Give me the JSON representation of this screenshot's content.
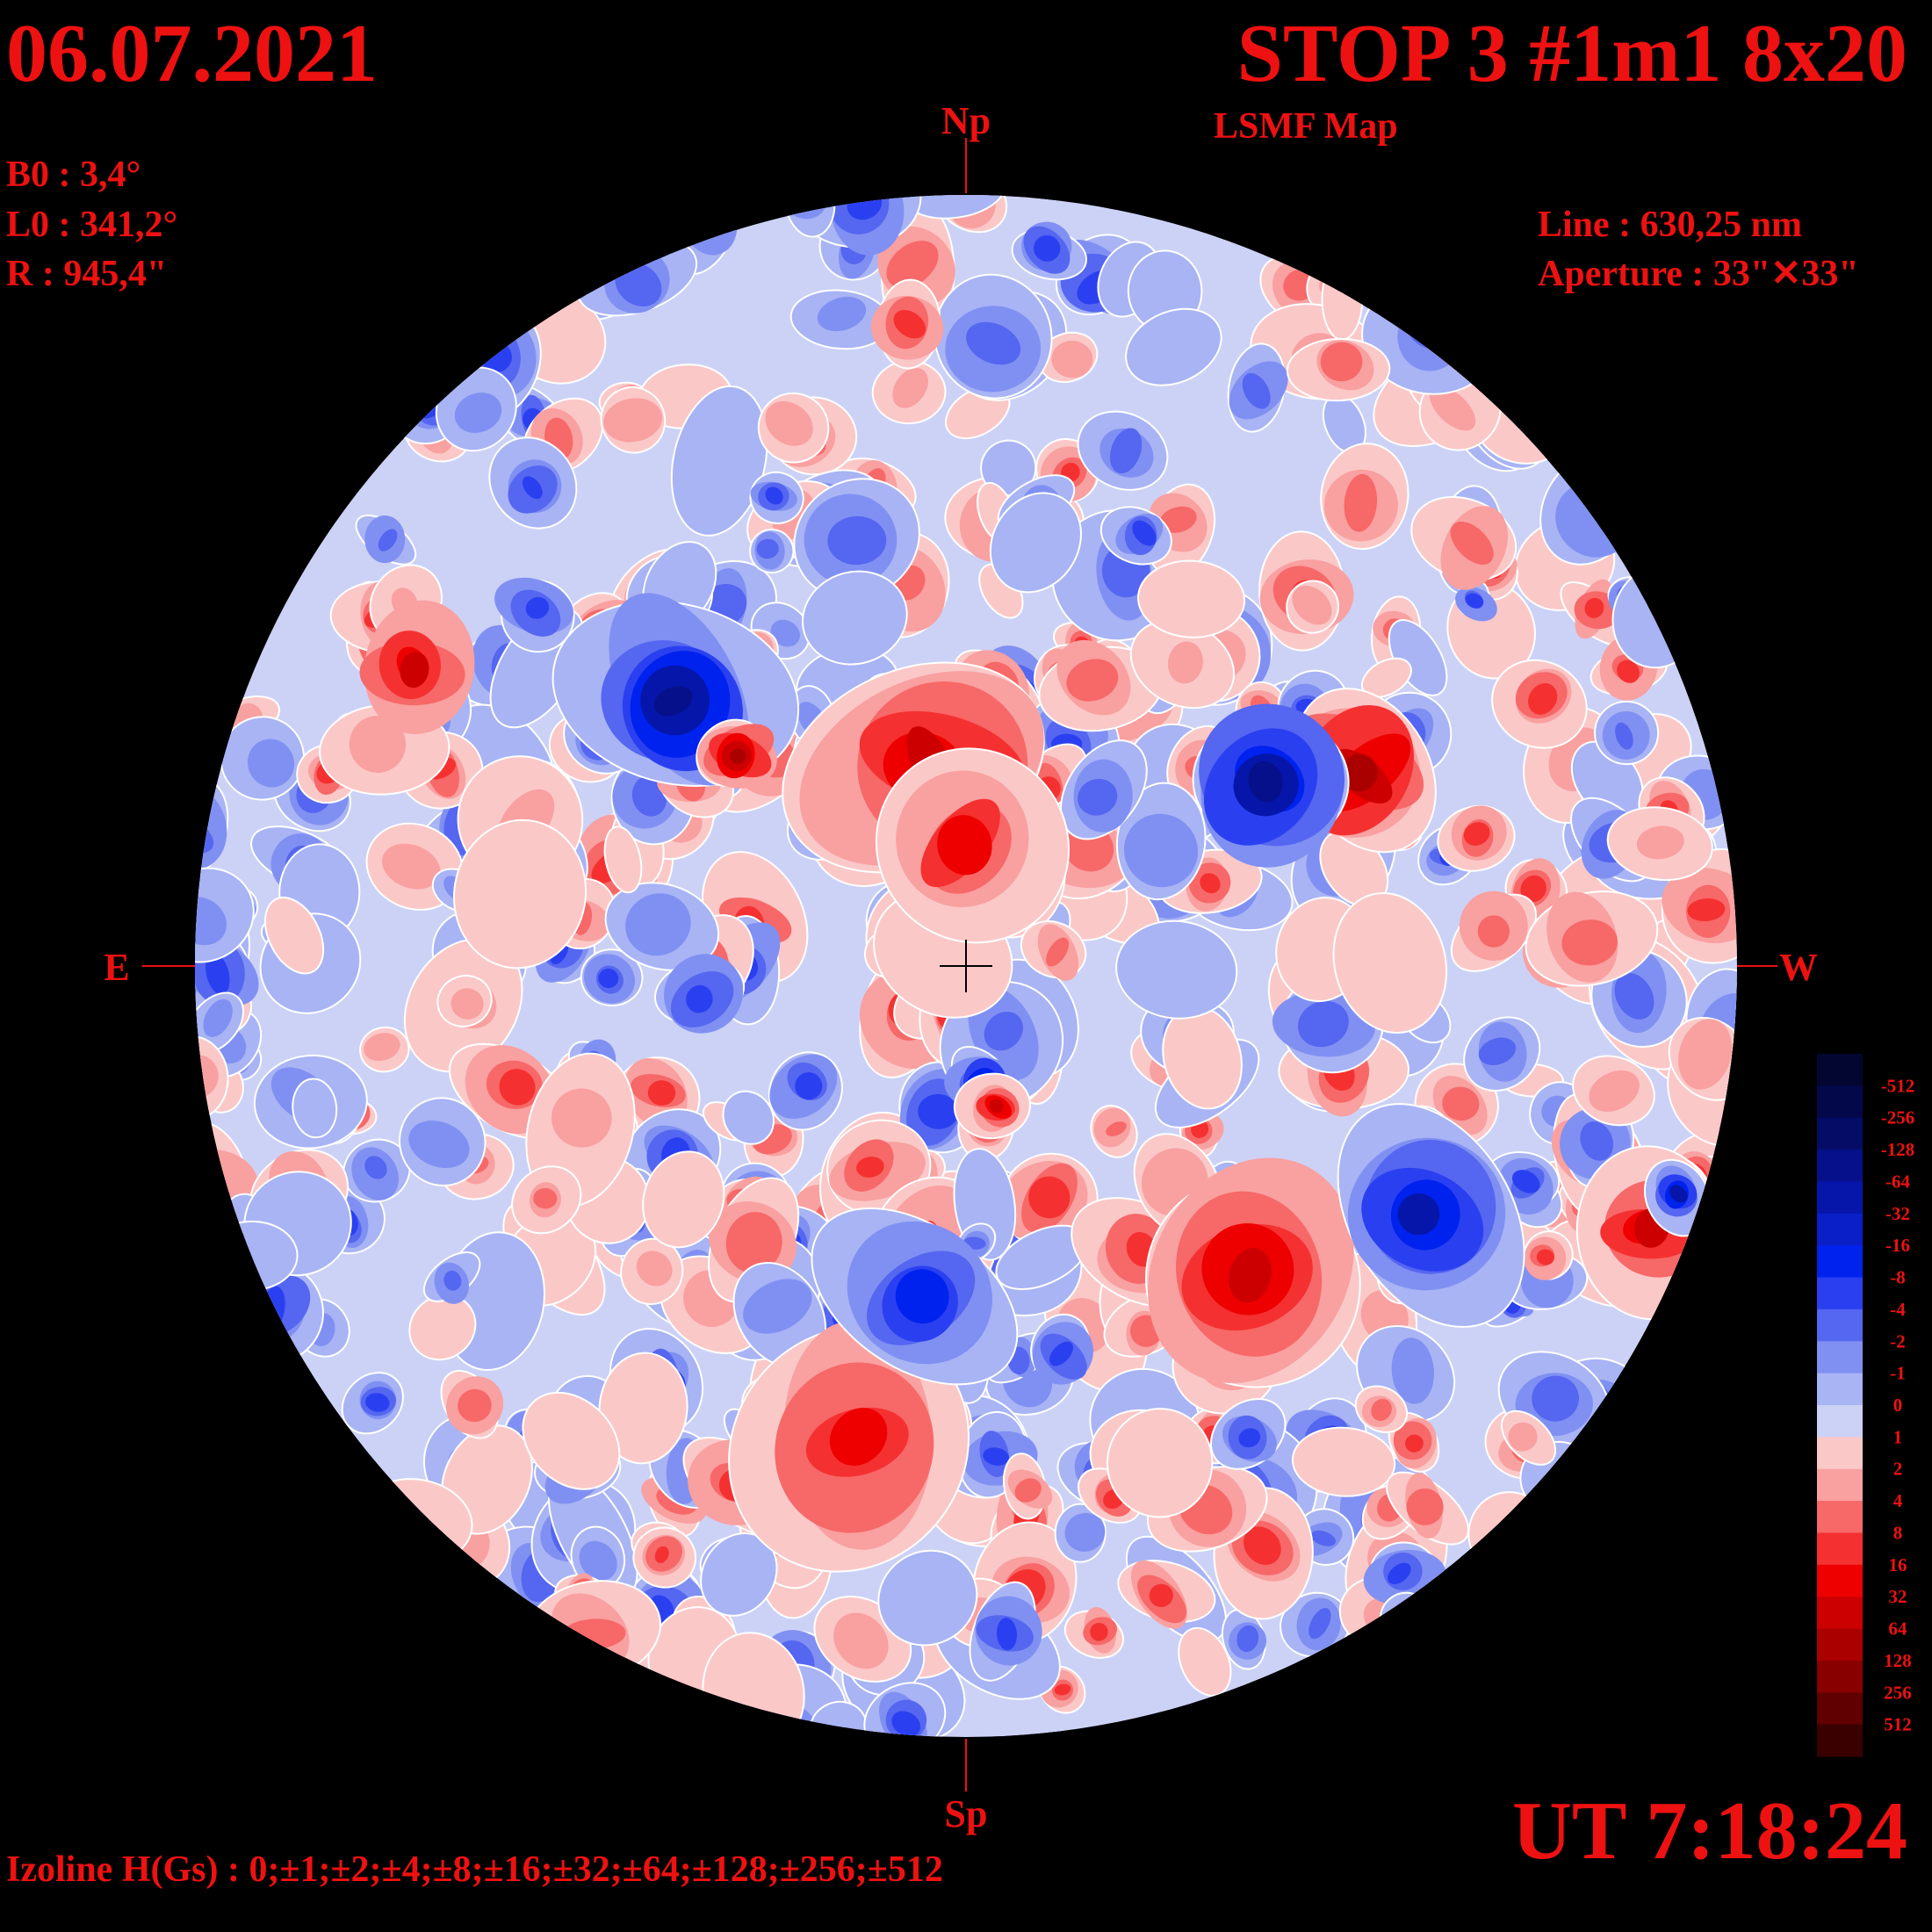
{
  "header": {
    "date": "06.07.2021",
    "title": "STOP 3 #1m1 8x20",
    "subtitle": "LSMF  Map"
  },
  "parameters": {
    "b0": "B0 : 3,4°",
    "l0": "L0 : 341,2°",
    "r": "R  : 945,4\""
  },
  "instrument": {
    "line": "Line :  630,25 nm",
    "aperture": "Aperture : 33\"✕33\""
  },
  "directions": {
    "north": "Np",
    "south": "Sp",
    "east": "E",
    "west": "W"
  },
  "time": "UT 7:18:24",
  "izoline": "Izoline H(Gs) : 0;±1;±2;±4;±8;±16;±32;±64;±128;±256;±512",
  "colorbar": {
    "labels": [
      "-512",
      "-256",
      "-128",
      "-64",
      "-32",
      "-16",
      "-8",
      "-4",
      "-2",
      "-1",
      "0",
      "1",
      "2",
      "4",
      "8",
      "16",
      "32",
      "64",
      "128",
      "256",
      "512"
    ],
    "colors": [
      "#020630",
      "#03084a",
      "#040c66",
      "#05108a",
      "#0616aa",
      "#0a1fc8",
      "#0022ee",
      "#2a40f0",
      "#5566f0",
      "#8090f2",
      "#a8b4f4",
      "#ccd2f6",
      "#fbc8c8",
      "#f9a0a0",
      "#f76868",
      "#f53030",
      "#ee0000",
      "#cc0000",
      "#aa0000",
      "#880000",
      "#600000",
      "#3a0000"
    ]
  }
}
